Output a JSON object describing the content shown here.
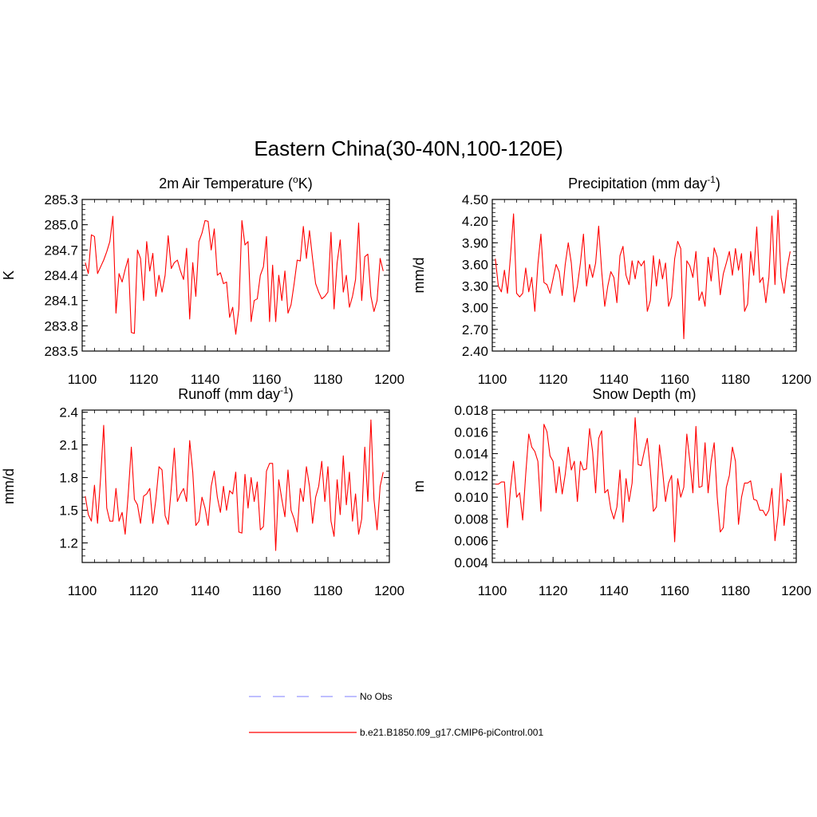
{
  "title": "Eastern China(30-40N,100-120E)",
  "chart_data": [
    {
      "type": "line",
      "title_main": "2m Air Temperature (",
      "title_sup": "o",
      "title_tail": "K)",
      "ylabel": "K",
      "xlim": [
        1100,
        1200
      ],
      "ylim": [
        283.5,
        285.3
      ],
      "yticks": [
        "283.5",
        "283.8",
        "284.1",
        "284.4",
        "284.7",
        "285.0",
        "285.3"
      ],
      "xticks": [
        "1100",
        "1120",
        "1140",
        "1160",
        "1180",
        "1200"
      ],
      "series": [
        {
          "name": "b.e21.B1850.f09_g17.CMIP6-piControl.001",
          "color": "#ff0000",
          "x_start": 1101,
          "values": [
            284.55,
            284.42,
            284.88,
            284.86,
            284.42,
            284.5,
            284.58,
            284.68,
            284.8,
            285.1,
            283.95,
            284.42,
            284.32,
            284.47,
            284.6,
            283.72,
            283.71,
            284.7,
            284.6,
            284.1,
            284.8,
            284.45,
            284.66,
            284.15,
            284.4,
            284.2,
            284.4,
            284.87,
            284.48,
            284.55,
            284.58,
            284.45,
            284.35,
            284.72,
            283.88,
            284.55,
            284.15,
            284.8,
            284.9,
            285.05,
            285.04,
            284.7,
            284.95,
            284.4,
            284.43,
            284.3,
            284.32,
            283.9,
            284.02,
            283.7,
            284.0,
            285.05,
            284.76,
            284.8,
            283.85,
            284.1,
            284.12,
            284.4,
            284.5,
            284.86,
            283.85,
            284.52,
            283.85,
            284.4,
            284.1,
            284.45,
            283.95,
            284.05,
            284.3,
            284.58,
            284.57,
            284.98,
            284.6,
            284.93,
            284.6,
            284.3,
            284.2,
            284.12,
            284.15,
            284.2,
            284.91,
            284.0,
            284.55,
            284.82,
            284.2,
            284.4,
            284.02,
            284.15,
            284.35,
            285.02,
            284.1,
            284.62,
            284.65,
            284.15,
            283.97,
            284.1,
            284.6,
            284.45
          ]
        }
      ]
    },
    {
      "type": "line",
      "title_main": "Precipitation (mm day",
      "title_sup": "-1",
      "title_tail": ")",
      "ylabel": "mm/d",
      "xlim": [
        1100,
        1200
      ],
      "ylim": [
        2.4,
        4.5
      ],
      "yticks": [
        "2.40",
        "2.70",
        "3.00",
        "3.30",
        "3.60",
        "3.90",
        "4.20",
        "4.50"
      ],
      "xticks": [
        "1100",
        "1120",
        "1140",
        "1160",
        "1180",
        "1200"
      ],
      "series": [
        {
          "name": "b.e21.B1850.f09_g17.CMIP6-piControl.001",
          "color": "#ff0000",
          "x_start": 1101,
          "values": [
            3.68,
            3.3,
            3.22,
            3.52,
            3.2,
            3.72,
            4.3,
            3.2,
            3.15,
            3.2,
            3.55,
            3.22,
            3.42,
            2.95,
            3.6,
            4.02,
            3.35,
            3.32,
            3.2,
            3.4,
            3.6,
            3.5,
            3.17,
            3.6,
            3.9,
            3.62,
            3.08,
            3.3,
            3.62,
            4.02,
            3.3,
            3.6,
            3.42,
            3.62,
            4.13,
            3.5,
            3.02,
            3.3,
            3.5,
            3.42,
            3.07,
            3.72,
            3.85,
            3.45,
            3.32,
            3.65,
            3.4,
            3.65,
            3.58,
            3.65,
            2.95,
            3.1,
            3.72,
            3.3,
            3.67,
            3.4,
            3.62,
            3.02,
            3.15,
            3.68,
            3.92,
            3.82,
            2.57,
            3.65,
            3.58,
            3.42,
            3.78,
            3.1,
            3.22,
            3.02,
            3.7,
            3.37,
            3.83,
            3.7,
            3.18,
            3.47,
            3.62,
            3.78,
            3.45,
            3.82,
            3.52,
            3.75,
            2.95,
            3.05,
            3.78,
            3.45,
            4.12,
            3.35,
            3.42,
            3.07,
            3.42,
            4.27,
            3.32,
            4.35,
            3.42,
            3.2,
            3.55,
            3.78
          ]
        }
      ]
    },
    {
      "type": "line",
      "title_main": "Runoff (mm day",
      "title_sup": "-1",
      "title_tail": ")",
      "ylabel": "mm/d",
      "xlim": [
        1100,
        1200
      ],
      "ylim": [
        1.02,
        2.42
      ],
      "yticks": [
        "1.2",
        "1.5",
        "1.8",
        "2.1",
        "2.4"
      ],
      "xticks": [
        "1100",
        "1120",
        "1140",
        "1160",
        "1180",
        "1200"
      ],
      "series": [
        {
          "name": "b.e21.B1850.f09_g17.CMIP6-piControl.001",
          "color": "#ff0000",
          "x_start": 1101,
          "values": [
            1.63,
            1.46,
            1.4,
            1.73,
            1.38,
            1.8,
            2.28,
            1.52,
            1.4,
            1.4,
            1.7,
            1.4,
            1.48,
            1.28,
            1.65,
            2.08,
            1.6,
            1.55,
            1.38,
            1.63,
            1.65,
            1.7,
            1.38,
            1.6,
            1.9,
            1.87,
            1.45,
            1.37,
            1.7,
            2.07,
            1.58,
            1.65,
            1.7,
            1.58,
            2.14,
            1.85,
            1.36,
            1.4,
            1.62,
            1.52,
            1.36,
            1.72,
            1.86,
            1.62,
            1.48,
            1.72,
            1.5,
            1.68,
            1.65,
            1.85,
            1.3,
            1.29,
            1.83,
            1.52,
            1.8,
            1.58,
            1.76,
            1.32,
            1.35,
            1.86,
            1.93,
            1.93,
            1.13,
            1.78,
            1.6,
            1.44,
            1.87,
            1.5,
            1.42,
            1.3,
            1.7,
            1.58,
            1.9,
            1.72,
            1.38,
            1.62,
            1.72,
            1.95,
            1.58,
            1.9,
            1.4,
            1.26,
            1.78,
            1.46,
            2.0,
            1.55,
            1.85,
            1.4,
            1.65,
            1.28,
            1.42,
            2.08,
            1.58,
            2.33,
            1.6,
            1.32,
            1.72,
            1.85
          ]
        }
      ]
    },
    {
      "type": "line",
      "title_main": "Snow Depth (m)",
      "title_sup": "",
      "title_tail": "",
      "ylabel": "m",
      "xlim": [
        1100,
        1200
      ],
      "ylim": [
        0.004,
        0.018
      ],
      "yticks": [
        "0.004",
        "0.006",
        "0.008",
        "0.010",
        "0.012",
        "0.014",
        "0.016",
        "0.018"
      ],
      "xticks": [
        "1100",
        "1120",
        "1140",
        "1160",
        "1180",
        "1200"
      ],
      "series": [
        {
          "name": "b.e21.B1850.f09_g17.CMIP6-piControl.001",
          "color": "#ff0000",
          "x_start": 1101,
          "values": [
            0.0112,
            0.0112,
            0.0114,
            0.0114,
            0.0072,
            0.0108,
            0.0133,
            0.01,
            0.0104,
            0.0079,
            0.0121,
            0.0158,
            0.0146,
            0.0142,
            0.0133,
            0.0087,
            0.0167,
            0.016,
            0.0138,
            0.0133,
            0.0104,
            0.0128,
            0.0103,
            0.0121,
            0.0146,
            0.0125,
            0.0133,
            0.0096,
            0.0133,
            0.0125,
            0.0126,
            0.0163,
            0.0142,
            0.0104,
            0.0154,
            0.0161,
            0.0104,
            0.0107,
            0.0089,
            0.008,
            0.0091,
            0.0125,
            0.0077,
            0.0117,
            0.0096,
            0.0113,
            0.0173,
            0.013,
            0.0129,
            0.0142,
            0.0154,
            0.0125,
            0.0087,
            0.0091,
            0.0148,
            0.0125,
            0.0096,
            0.0113,
            0.012,
            0.0059,
            0.0117,
            0.01,
            0.0109,
            0.0158,
            0.0133,
            0.0104,
            0.0165,
            0.0109,
            0.011,
            0.015,
            0.0104,
            0.0133,
            0.015,
            0.01,
            0.0068,
            0.0072,
            0.0109,
            0.012,
            0.0146,
            0.0133,
            0.0075,
            0.01,
            0.0113,
            0.0113,
            0.0115,
            0.0098,
            0.0097,
            0.0088,
            0.0088,
            0.0083,
            0.0088,
            0.0108,
            0.006,
            0.0083,
            0.0122,
            0.0074,
            0.0098,
            0.0096
          ]
        }
      ]
    }
  ],
  "legend": [
    {
      "label": "No Obs",
      "style": "dashed",
      "color": "#9999ff"
    },
    {
      "label": "b.e21.B1850.f09_g17.CMIP6-piControl.001",
      "style": "solid",
      "color": "#ff0000"
    }
  ]
}
